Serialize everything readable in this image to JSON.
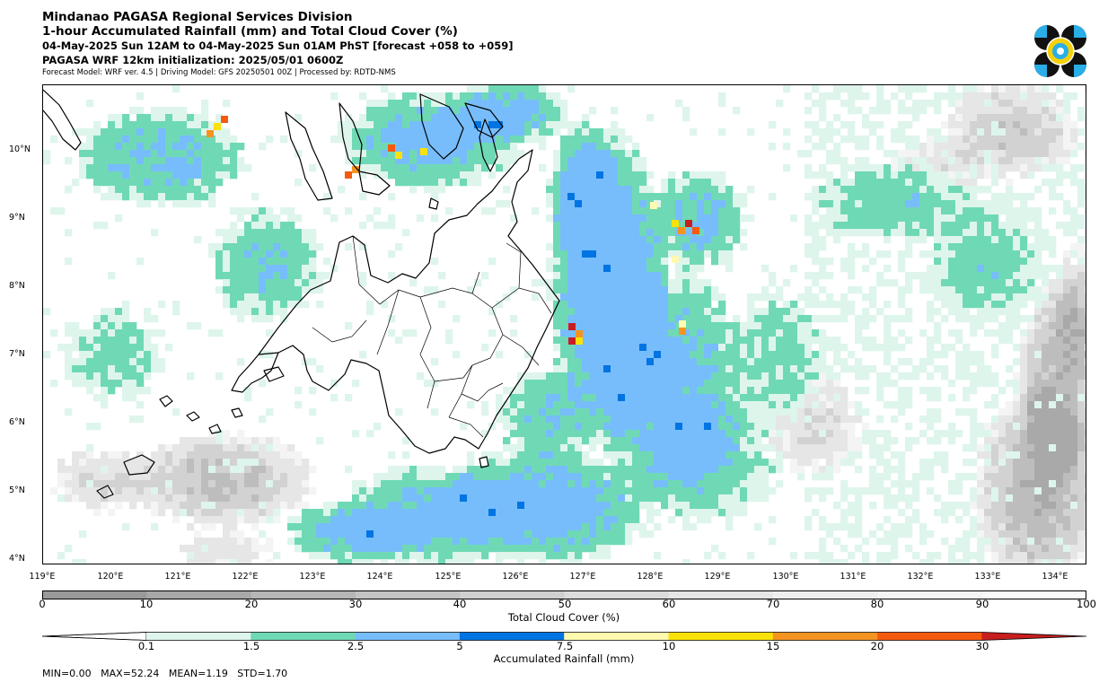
{
  "header": {
    "line1": "Mindanao PAGASA Regional Services Division",
    "line2": "1-hour Accumulated Rainfall (mm) and Total Cloud Cover (%)",
    "line3": "04-May-2025 Sun 12AM to 04-May-2025 Sun 01AM PhST [forecast +058 to +059]",
    "line4": "PAGASA WRF 12km initialization: 2025/05/01 0600Z",
    "line5": "Forecast Model: WRF ver. 4.5 | Driving Model: GFS 20250501 00Z | Processed by: RDTD-NMS"
  },
  "map": {
    "lat_labels": [
      "10°N",
      "9°N",
      "8°N",
      "7°N",
      "6°N",
      "5°N",
      "4°N"
    ],
    "lon_labels": [
      "119°E",
      "120°E",
      "121°E",
      "122°E",
      "123°E",
      "124°E",
      "125°E",
      "126°E",
      "127°E",
      "128°E",
      "129°E",
      "130°E",
      "131°E",
      "132°E",
      "133°E",
      "134°E"
    ],
    "lat_range": [
      3.9,
      11.0
    ],
    "lon_range": [
      119.0,
      134.5
    ]
  },
  "cloud_colorbar": {
    "label": "Total Cloud Cover (%)",
    "ticks": [
      "0",
      "10",
      "20",
      "30",
      "40",
      "50",
      "60",
      "70",
      "80",
      "90",
      "100"
    ],
    "colors": [
      "#9a9a9a",
      "#a8a8a8",
      "#b6b6b6",
      "#c4c4c4",
      "#d0d0d0",
      "#dcdcdc",
      "#e6e6e6",
      "#eeeeee",
      "#f4f4f4",
      "#fafafa"
    ]
  },
  "rain_colorbar": {
    "label": "Accumulated Rainfall (mm)",
    "ticks": [
      "0.1",
      "1.5",
      "2.5",
      "5",
      "7.5",
      "10",
      "15",
      "20",
      "30"
    ],
    "colors": [
      "#def5ec",
      "#6fd9b5",
      "#77bdfb",
      "#0074e2",
      "#fffaaf",
      "#fae209",
      "#f59321",
      "#f55a0f",
      "#c81e1e"
    ]
  },
  "stats": {
    "text": "MIN=0.00   MAX=52.24   MEAN=1.19   STD=1.70"
  }
}
